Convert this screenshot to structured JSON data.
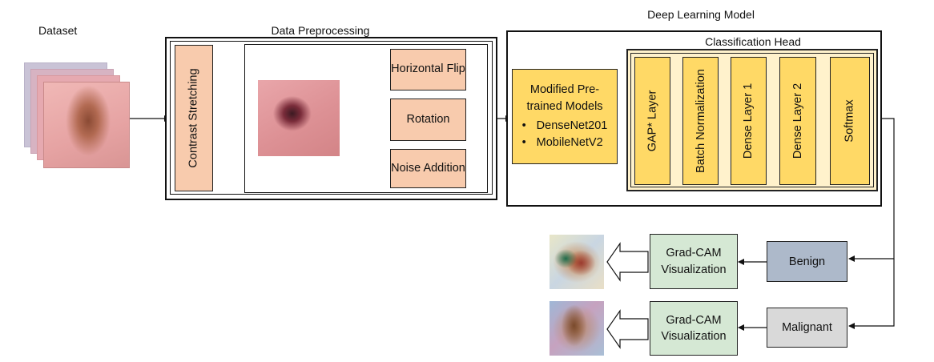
{
  "dataset": {
    "label": "Dataset"
  },
  "preprocessing": {
    "title": "Data Preprocessing",
    "contrast_label": "Contrast Stretching",
    "augmentations": [
      {
        "label": "Horizontal Flip"
      },
      {
        "label": "Rotation"
      },
      {
        "label": "Noise Addition"
      }
    ]
  },
  "model": {
    "title": "Deep Learning Model",
    "backbone": {
      "title": "Modified Pre-trained Models",
      "items": [
        "DenseNet201",
        "MobileNetV2"
      ]
    },
    "head": {
      "title": "Classification Head",
      "layers": [
        "GAP* Layer",
        "Batch Normalization",
        "Dense Layer 1",
        "Dense Layer 2",
        "Softmax"
      ]
    }
  },
  "outputs": {
    "benign": "Benign",
    "malignant": "Malignant",
    "gradcam": "Grad-CAM Visualization"
  },
  "colors": {
    "peach": "#f8cbad",
    "gold": "#ffd966",
    "head_bg": "#fff2cc",
    "green": "#d5e8d4",
    "benign": "#adb9ca",
    "malignant": "#d9d9d9"
  }
}
